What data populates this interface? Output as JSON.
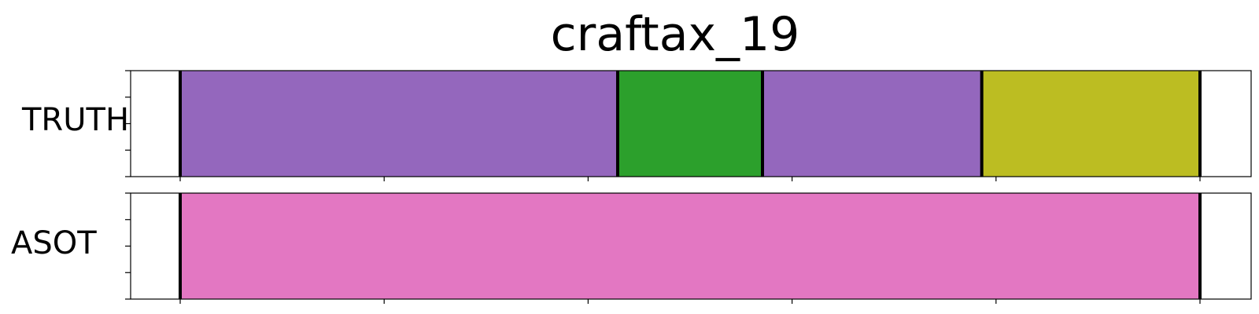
{
  "chart_data": {
    "type": "segmentation-timeline",
    "title": "craftax_19",
    "xlim": [
      0,
      1
    ],
    "rows": [
      {
        "label": "TRUTH",
        "segments": [
          {
            "start": 0.0,
            "end": 0.429,
            "color": "#9467bd"
          },
          {
            "start": 0.429,
            "end": 0.571,
            "color": "#2ca02c"
          },
          {
            "start": 0.571,
            "end": 0.786,
            "color": "#9467bd"
          },
          {
            "start": 0.786,
            "end": 1.0,
            "color": "#bcbd22"
          }
        ]
      },
      {
        "label": "ASOT",
        "segments": [
          {
            "start": 0.0,
            "end": 1.0,
            "color": "#e377c2"
          }
        ]
      }
    ],
    "grid": false,
    "legend": "none"
  }
}
